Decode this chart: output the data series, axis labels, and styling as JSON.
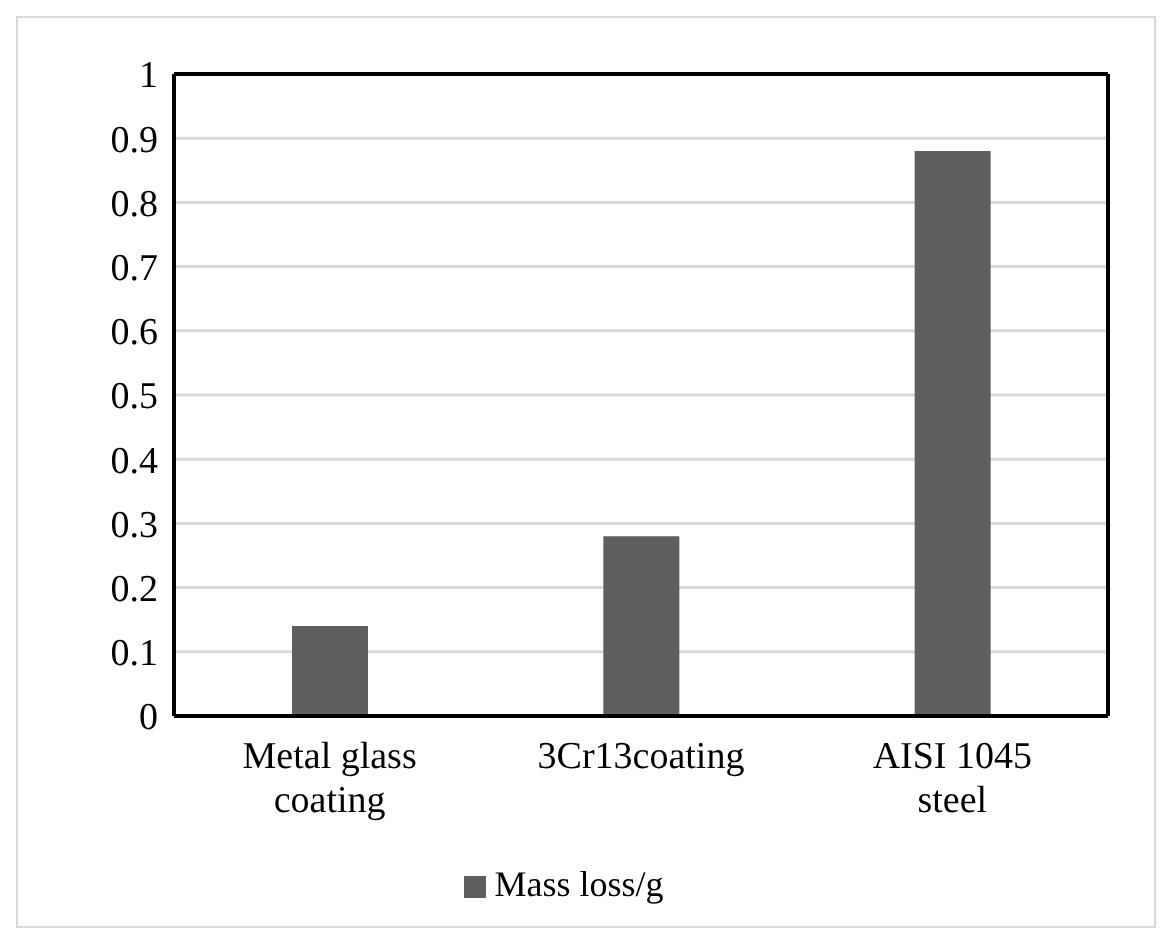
{
  "chart_data": {
    "type": "bar",
    "categories": [
      "Metal glass coating",
      "3Cr13coating",
      "AISI 1045 steel"
    ],
    "series": [
      {
        "name": "Mass loss/g",
        "color": "#5f5f5f",
        "values": [
          0.14,
          0.28,
          0.88
        ]
      }
    ],
    "ylim": [
      0,
      1
    ],
    "yticks": [
      0,
      0.1,
      0.2,
      0.3,
      0.4,
      0.5,
      0.6,
      0.7,
      0.8,
      0.9,
      1
    ],
    "grid": "y",
    "legend": "bottom"
  }
}
